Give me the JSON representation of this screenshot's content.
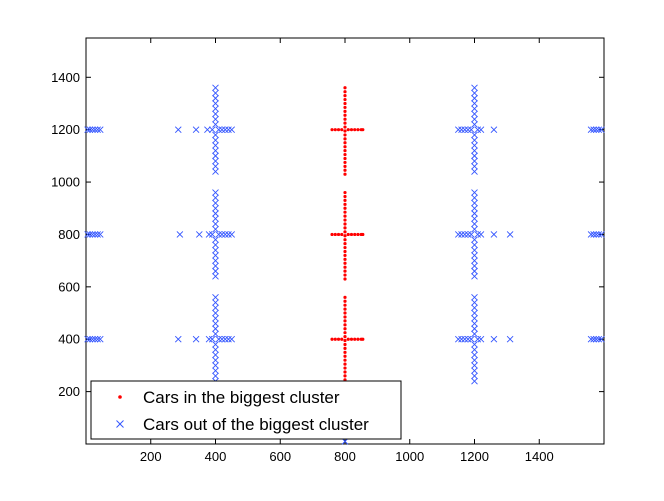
{
  "chart_data": {
    "type": "scatter",
    "title": "",
    "xlabel": "",
    "ylabel": "",
    "xlim": [
      0,
      1600
    ],
    "ylim": [
      0,
      1550
    ],
    "xticks": [
      200,
      400,
      600,
      800,
      1000,
      1200,
      1400
    ],
    "yticks": [
      200,
      400,
      600,
      800,
      1000,
      1200,
      1400
    ],
    "grid": false,
    "legend_position": "bottom-left",
    "series": [
      {
        "name": "Cars in the biggest cluster",
        "marker": "dot",
        "color": "#ff0000",
        "points": [
          [
            800,
            1360
          ],
          [
            800,
            1345
          ],
          [
            800,
            1330
          ],
          [
            800,
            1315
          ],
          [
            800,
            1300
          ],
          [
            800,
            1285
          ],
          [
            800,
            1270
          ],
          [
            800,
            1255
          ],
          [
            800,
            1240
          ],
          [
            800,
            1225
          ],
          [
            800,
            1210
          ],
          [
            800,
            1195
          ],
          [
            800,
            1180
          ],
          [
            800,
            1165
          ],
          [
            800,
            1150
          ],
          [
            800,
            1135
          ],
          [
            800,
            1120
          ],
          [
            800,
            1105
          ],
          [
            800,
            1090
          ],
          [
            800,
            1075
          ],
          [
            800,
            1060
          ],
          [
            800,
            1045
          ],
          [
            800,
            1030
          ],
          [
            760,
            1200
          ],
          [
            770,
            1200
          ],
          [
            780,
            1200
          ],
          [
            790,
            1200
          ],
          [
            810,
            1200
          ],
          [
            820,
            1200
          ],
          [
            830,
            1200
          ],
          [
            840,
            1200
          ],
          [
            850,
            1200
          ],
          [
            855,
            1200
          ],
          [
            800,
            960
          ],
          [
            800,
            945
          ],
          [
            800,
            930
          ],
          [
            800,
            915
          ],
          [
            800,
            900
          ],
          [
            800,
            885
          ],
          [
            800,
            870
          ],
          [
            800,
            855
          ],
          [
            800,
            840
          ],
          [
            800,
            825
          ],
          [
            800,
            810
          ],
          [
            800,
            795
          ],
          [
            800,
            780
          ],
          [
            800,
            765
          ],
          [
            800,
            750
          ],
          [
            800,
            735
          ],
          [
            800,
            720
          ],
          [
            800,
            705
          ],
          [
            800,
            690
          ],
          [
            800,
            675
          ],
          [
            800,
            660
          ],
          [
            800,
            645
          ],
          [
            800,
            630
          ],
          [
            760,
            800
          ],
          [
            770,
            800
          ],
          [
            780,
            800
          ],
          [
            790,
            800
          ],
          [
            810,
            800
          ],
          [
            820,
            800
          ],
          [
            830,
            800
          ],
          [
            840,
            800
          ],
          [
            850,
            800
          ],
          [
            855,
            800
          ],
          [
            800,
            560
          ],
          [
            800,
            545
          ],
          [
            800,
            530
          ],
          [
            800,
            515
          ],
          [
            800,
            500
          ],
          [
            800,
            485
          ],
          [
            800,
            470
          ],
          [
            800,
            455
          ],
          [
            800,
            440
          ],
          [
            800,
            425
          ],
          [
            800,
            410
          ],
          [
            800,
            395
          ],
          [
            800,
            380
          ],
          [
            800,
            365
          ],
          [
            800,
            350
          ],
          [
            800,
            335
          ],
          [
            800,
            320
          ],
          [
            800,
            305
          ],
          [
            800,
            290
          ],
          [
            800,
            275
          ],
          [
            800,
            260
          ],
          [
            800,
            245
          ],
          [
            800,
            230
          ],
          [
            760,
            400
          ],
          [
            770,
            400
          ],
          [
            780,
            400
          ],
          [
            790,
            400
          ],
          [
            810,
            400
          ],
          [
            820,
            400
          ],
          [
            830,
            400
          ],
          [
            840,
            400
          ],
          [
            850,
            400
          ],
          [
            855,
            400
          ]
        ]
      },
      {
        "name": "Cars out of the biggest cluster",
        "marker": "x",
        "color": "#3355ff",
        "points": [
          [
            5,
            1200
          ],
          [
            12,
            1200
          ],
          [
            20,
            1200
          ],
          [
            28,
            1200
          ],
          [
            36,
            1200
          ],
          [
            44,
            1200
          ],
          [
            5,
            800
          ],
          [
            12,
            800
          ],
          [
            20,
            800
          ],
          [
            28,
            800
          ],
          [
            36,
            800
          ],
          [
            44,
            800
          ],
          [
            5,
            400
          ],
          [
            12,
            400
          ],
          [
            20,
            400
          ],
          [
            28,
            400
          ],
          [
            36,
            400
          ],
          [
            44,
            400
          ],
          [
            1560,
            1200
          ],
          [
            1568,
            1200
          ],
          [
            1576,
            1200
          ],
          [
            1584,
            1200
          ],
          [
            1592,
            1200
          ],
          [
            1560,
            800
          ],
          [
            1568,
            800
          ],
          [
            1576,
            800
          ],
          [
            1584,
            800
          ],
          [
            1592,
            800
          ],
          [
            1560,
            400
          ],
          [
            1568,
            400
          ],
          [
            1576,
            400
          ],
          [
            1584,
            400
          ],
          [
            1592,
            400
          ],
          [
            400,
            1360
          ],
          [
            400,
            1340
          ],
          [
            400,
            1320
          ],
          [
            400,
            1300
          ],
          [
            400,
            1280
          ],
          [
            400,
            1260
          ],
          [
            400,
            1240
          ],
          [
            400,
            1220
          ],
          [
            400,
            1180
          ],
          [
            400,
            1160
          ],
          [
            400,
            1140
          ],
          [
            400,
            1120
          ],
          [
            400,
            1100
          ],
          [
            400,
            1080
          ],
          [
            400,
            1060
          ],
          [
            400,
            1040
          ],
          [
            400,
            960
          ],
          [
            400,
            940
          ],
          [
            400,
            920
          ],
          [
            400,
            900
          ],
          [
            400,
            880
          ],
          [
            400,
            860
          ],
          [
            400,
            840
          ],
          [
            400,
            820
          ],
          [
            400,
            780
          ],
          [
            400,
            760
          ],
          [
            400,
            740
          ],
          [
            400,
            720
          ],
          [
            400,
            700
          ],
          [
            400,
            680
          ],
          [
            400,
            660
          ],
          [
            400,
            640
          ],
          [
            400,
            560
          ],
          [
            400,
            540
          ],
          [
            400,
            520
          ],
          [
            400,
            500
          ],
          [
            400,
            480
          ],
          [
            400,
            460
          ],
          [
            400,
            440
          ],
          [
            400,
            420
          ],
          [
            400,
            380
          ],
          [
            400,
            360
          ],
          [
            400,
            340
          ],
          [
            400,
            320
          ],
          [
            400,
            300
          ],
          [
            400,
            280
          ],
          [
            400,
            260
          ],
          [
            400,
            240
          ],
          [
            285,
            1200
          ],
          [
            340,
            1200
          ],
          [
            375,
            1200
          ],
          [
            390,
            1200
          ],
          [
            410,
            1200
          ],
          [
            420,
            1200
          ],
          [
            430,
            1200
          ],
          [
            440,
            1200
          ],
          [
            450,
            1200
          ],
          [
            290,
            800
          ],
          [
            350,
            800
          ],
          [
            380,
            800
          ],
          [
            390,
            800
          ],
          [
            410,
            800
          ],
          [
            420,
            800
          ],
          [
            430,
            800
          ],
          [
            440,
            800
          ],
          [
            450,
            800
          ],
          [
            285,
            400
          ],
          [
            340,
            400
          ],
          [
            380,
            400
          ],
          [
            390,
            400
          ],
          [
            410,
            400
          ],
          [
            420,
            400
          ],
          [
            430,
            400
          ],
          [
            440,
            400
          ],
          [
            450,
            400
          ],
          [
            1200,
            1360
          ],
          [
            1200,
            1340
          ],
          [
            1200,
            1320
          ],
          [
            1200,
            1300
          ],
          [
            1200,
            1280
          ],
          [
            1200,
            1260
          ],
          [
            1200,
            1240
          ],
          [
            1200,
            1220
          ],
          [
            1200,
            1180
          ],
          [
            1200,
            1160
          ],
          [
            1200,
            1140
          ],
          [
            1200,
            1120
          ],
          [
            1200,
            1100
          ],
          [
            1200,
            1080
          ],
          [
            1200,
            1060
          ],
          [
            1200,
            1040
          ],
          [
            1200,
            960
          ],
          [
            1200,
            940
          ],
          [
            1200,
            920
          ],
          [
            1200,
            900
          ],
          [
            1200,
            880
          ],
          [
            1200,
            860
          ],
          [
            1200,
            840
          ],
          [
            1200,
            820
          ],
          [
            1200,
            780
          ],
          [
            1200,
            760
          ],
          [
            1200,
            740
          ],
          [
            1200,
            720
          ],
          [
            1200,
            700
          ],
          [
            1200,
            680
          ],
          [
            1200,
            660
          ],
          [
            1200,
            640
          ],
          [
            1200,
            560
          ],
          [
            1200,
            540
          ],
          [
            1200,
            520
          ],
          [
            1200,
            500
          ],
          [
            1200,
            480
          ],
          [
            1200,
            460
          ],
          [
            1200,
            440
          ],
          [
            1200,
            420
          ],
          [
            1200,
            380
          ],
          [
            1200,
            360
          ],
          [
            1200,
            340
          ],
          [
            1200,
            320
          ],
          [
            1200,
            300
          ],
          [
            1200,
            280
          ],
          [
            1200,
            260
          ],
          [
            1200,
            240
          ],
          [
            1150,
            1200
          ],
          [
            1160,
            1200
          ],
          [
            1170,
            1200
          ],
          [
            1180,
            1200
          ],
          [
            1190,
            1200
          ],
          [
            1210,
            1200
          ],
          [
            1220,
            1200
          ],
          [
            1260,
            1200
          ],
          [
            1150,
            800
          ],
          [
            1160,
            800
          ],
          [
            1170,
            800
          ],
          [
            1180,
            800
          ],
          [
            1190,
            800
          ],
          [
            1210,
            800
          ],
          [
            1220,
            800
          ],
          [
            1260,
            800
          ],
          [
            1310,
            800
          ],
          [
            1150,
            400
          ],
          [
            1160,
            400
          ],
          [
            1170,
            400
          ],
          [
            1180,
            400
          ],
          [
            1190,
            400
          ],
          [
            1210,
            400
          ],
          [
            1220,
            400
          ],
          [
            1260,
            400
          ],
          [
            1310,
            400
          ],
          [
            800,
            10
          ]
        ]
      }
    ]
  }
}
